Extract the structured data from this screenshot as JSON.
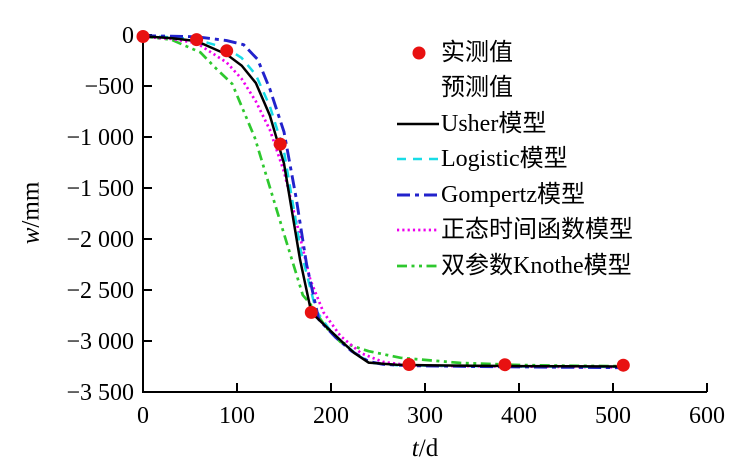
{
  "figure": {
    "background": "#ffffff"
  },
  "axes": {
    "xlabel": {
      "variable": "t",
      "unit": "/d"
    },
    "ylabel": {
      "variable": "w",
      "unit": "/mm"
    },
    "x_ticks": [
      {
        "value": 0,
        "label": "0"
      },
      {
        "value": 100,
        "label": "100"
      },
      {
        "value": 200,
        "label": "200"
      },
      {
        "value": 300,
        "label": "300"
      },
      {
        "value": 400,
        "label": "400"
      },
      {
        "value": 500,
        "label": "500"
      },
      {
        "value": 600,
        "label": "600"
      }
    ],
    "y_ticks": [
      {
        "value": 0,
        "label": "0"
      },
      {
        "value": -500,
        "label": "−500"
      },
      {
        "value": -1000,
        "label": "−1 000"
      },
      {
        "value": -1500,
        "label": "−1 500"
      },
      {
        "value": -2000,
        "label": "−2 000"
      },
      {
        "value": -2500,
        "label": "−2 500"
      },
      {
        "value": -3000,
        "label": "−3 000"
      },
      {
        "value": -3500,
        "label": "−3 500"
      }
    ]
  },
  "legend": {
    "items": [
      {
        "label": "实测值",
        "marker": "dot",
        "color": "#e81111"
      },
      {
        "label": "预测值",
        "marker": "none",
        "color": "#000000"
      },
      {
        "label": "Usher模型",
        "marker": "line",
        "dash": "solid",
        "color": "#000000"
      },
      {
        "label": "Logistic模型",
        "marker": "line",
        "dash": "dashed",
        "color": "#18dce6"
      },
      {
        "label": "Gompertz模型",
        "marker": "line",
        "dash": "dashdot",
        "color": "#2222cc"
      },
      {
        "label": "正态时间函数模型",
        "marker": "line",
        "dash": "dotted",
        "color": "#ee00ee"
      },
      {
        "label": "双参数Knothe模型",
        "marker": "line",
        "dash": "dashdotdot",
        "color": "#2ec82e"
      }
    ]
  },
  "chart_data": {
    "type": "line",
    "title": "",
    "xlabel": "t/d",
    "ylabel": "w/mm",
    "xlim": [
      0,
      600
    ],
    "ylim": [
      -3500,
      0
    ],
    "grid": false,
    "legend_position": "upper right",
    "measured": {
      "name": "实测值",
      "color": "#e81111",
      "points": [
        [
          0,
          -15
        ],
        [
          57,
          -45
        ],
        [
          89,
          -155
        ],
        [
          146,
          -1070
        ],
        [
          179,
          -2720
        ],
        [
          283,
          -3230
        ],
        [
          385,
          -3232
        ],
        [
          511,
          -3237
        ]
      ]
    },
    "series": [
      {
        "name": "Usher模型",
        "color": "#000000",
        "dash": "solid",
        "points": [
          [
            0,
            -12
          ],
          [
            30,
            -30
          ],
          [
            57,
            -60
          ],
          [
            89,
            -190
          ],
          [
            105,
            -300
          ],
          [
            120,
            -470
          ],
          [
            135,
            -790
          ],
          [
            150,
            -1260
          ],
          [
            167,
            -2200
          ],
          [
            179,
            -2720
          ],
          [
            196,
            -2870
          ],
          [
            212,
            -3010
          ],
          [
            225,
            -3120
          ],
          [
            240,
            -3212
          ],
          [
            270,
            -3233
          ],
          [
            300,
            -3238
          ],
          [
            350,
            -3242
          ],
          [
            400,
            -3246
          ],
          [
            450,
            -3248
          ],
          [
            511,
            -3250
          ]
        ]
      },
      {
        "name": "Logistic模型",
        "color": "#18dce6",
        "dash": "dashed",
        "points": [
          [
            0,
            -10
          ],
          [
            30,
            -22
          ],
          [
            57,
            -45
          ],
          [
            89,
            -130
          ],
          [
            105,
            -225
          ],
          [
            120,
            -390
          ],
          [
            135,
            -700
          ],
          [
            150,
            -1140
          ],
          [
            168,
            -2120
          ],
          [
            184,
            -2700
          ],
          [
            198,
            -2880
          ],
          [
            214,
            -3030
          ],
          [
            230,
            -3150
          ],
          [
            244,
            -3216
          ],
          [
            270,
            -3237
          ],
          [
            300,
            -3241
          ],
          [
            350,
            -3246
          ],
          [
            400,
            -3250
          ],
          [
            450,
            -3252
          ],
          [
            511,
            -3254
          ]
        ]
      },
      {
        "name": "Gompertz模型",
        "color": "#2222cc",
        "dash": "dashdot",
        "points": [
          [
            0,
            -8
          ],
          [
            30,
            -12
          ],
          [
            57,
            -18
          ],
          [
            89,
            -55
          ],
          [
            107,
            -95
          ],
          [
            122,
            -240
          ],
          [
            135,
            -530
          ],
          [
            150,
            -950
          ],
          [
            163,
            -1600
          ],
          [
            174,
            -2250
          ],
          [
            187,
            -2790
          ],
          [
            205,
            -2965
          ],
          [
            222,
            -3100
          ],
          [
            240,
            -3200
          ],
          [
            255,
            -3228
          ],
          [
            283,
            -3242
          ],
          [
            320,
            -3246
          ],
          [
            350,
            -3250
          ],
          [
            400,
            -3254
          ],
          [
            450,
            -3258
          ],
          [
            511,
            -3262
          ]
        ]
      },
      {
        "name": "正态时间函数模型",
        "color": "#ee00ee",
        "dash": "dotted",
        "points": [
          [
            0,
            -18
          ],
          [
            30,
            -38
          ],
          [
            57,
            -78
          ],
          [
            89,
            -270
          ],
          [
            105,
            -430
          ],
          [
            120,
            -650
          ],
          [
            135,
            -930
          ],
          [
            150,
            -1340
          ],
          [
            165,
            -1900
          ],
          [
            178,
            -2400
          ],
          [
            192,
            -2720
          ],
          [
            210,
            -2950
          ],
          [
            232,
            -3120
          ],
          [
            255,
            -3205
          ],
          [
            283,
            -3238
          ],
          [
            320,
            -3244
          ],
          [
            385,
            -3250
          ],
          [
            450,
            -3254
          ],
          [
            511,
            -3258
          ]
        ]
      },
      {
        "name": "双参数Knothe模型",
        "color": "#2ec82e",
        "dash": "dashdotdot",
        "points": [
          [
            0,
            -15
          ],
          [
            30,
            -45
          ],
          [
            61,
            -170
          ],
          [
            78,
            -330
          ],
          [
            95,
            -480
          ],
          [
            119,
            -1010
          ],
          [
            150,
            -1950
          ],
          [
            170,
            -2550
          ],
          [
            177,
            -2625
          ],
          [
            195,
            -2870
          ],
          [
            210,
            -3010
          ],
          [
            240,
            -3100
          ],
          [
            274,
            -3165
          ],
          [
            337,
            -3215
          ],
          [
            400,
            -3235
          ],
          [
            450,
            -3242
          ],
          [
            511,
            -3247
          ]
        ]
      }
    ]
  }
}
